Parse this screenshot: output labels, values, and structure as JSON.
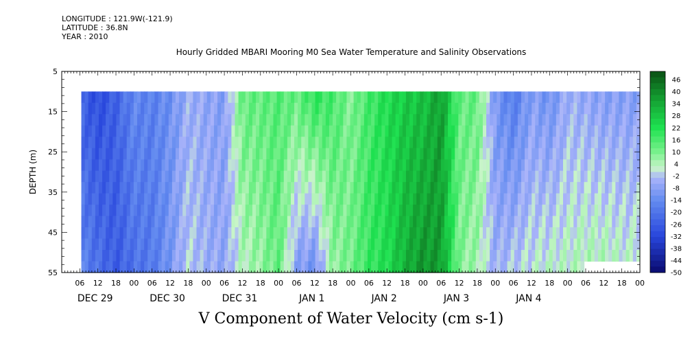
{
  "header": {
    "longitude": "LONGITUDE : 121.9W(-121.9)",
    "latitude": "LATITUDE : 36.8N",
    "year": "YEAR : 2010"
  },
  "chart_data": {
    "type": "heatmap",
    "title": "Hourly Gridded MBARI Mooring M0 Sea Water Temperature and Salinity Observations",
    "xlabel": "V Component of Water Velocity (cm s-1)",
    "ylabel": "DEPTH (m)",
    "yticks": [
      5,
      15,
      25,
      35,
      45,
      55
    ],
    "ylim": [
      5,
      55
    ],
    "y_inverted": true,
    "x_hour_tick_labels": [
      "06",
      "12",
      "18",
      "00",
      "06",
      "12",
      "18",
      "00",
      "06",
      "12",
      "18",
      "00",
      "06",
      "12",
      "18",
      "00",
      "06",
      "12",
      "18",
      "00",
      "06",
      "12",
      "18",
      "00",
      "06",
      "12",
      "18",
      "00",
      "06",
      "12",
      "18",
      "00"
    ],
    "x_day_labels": [
      "DEC 29",
      "DEC 30",
      "DEC 31",
      "JAN  1",
      "JAN  2",
      "JAN  3",
      "JAN  4"
    ],
    "colorbar": {
      "labels": [
        "46",
        "40",
        "34",
        "28",
        "22",
        "16",
        "10",
        "4",
        "-2",
        "-8",
        "-14",
        "-20",
        "-26",
        "-32",
        "-38",
        "-44",
        "-50"
      ],
      "range": [
        -50,
        52
      ],
      "grid": "off"
    },
    "field_profile": {
      "x_hours": [
        0,
        6,
        12,
        18,
        24,
        30,
        36,
        42,
        48,
        54,
        60,
        66,
        72,
        78,
        84,
        90,
        96,
        102,
        108,
        114,
        120,
        126,
        132,
        138,
        144,
        150,
        156,
        162,
        168,
        174,
        180,
        186,
        192
      ],
      "shallow_values": [
        -20,
        -24,
        -30,
        -24,
        -14,
        -16,
        -12,
        -4,
        -6,
        -8,
        14,
        14,
        16,
        14,
        22,
        18,
        10,
        18,
        24,
        28,
        30,
        38,
        14,
        14,
        -10,
        -18,
        -8,
        -12,
        -4,
        -6,
        -8,
        -8,
        -8
      ],
      "deep_values": [
        -10,
        -14,
        -20,
        -26,
        -20,
        -18,
        -10,
        0,
        -4,
        -6,
        4,
        8,
        14,
        -8,
        -12,
        8,
        12,
        20,
        24,
        34,
        40,
        38,
        10,
        6,
        -4,
        0,
        2,
        4,
        4,
        6,
        6,
        4,
        4
      ],
      "data_start_depth": 10,
      "missing_region": "JAN 4 06-00 below 50 m"
    }
  }
}
